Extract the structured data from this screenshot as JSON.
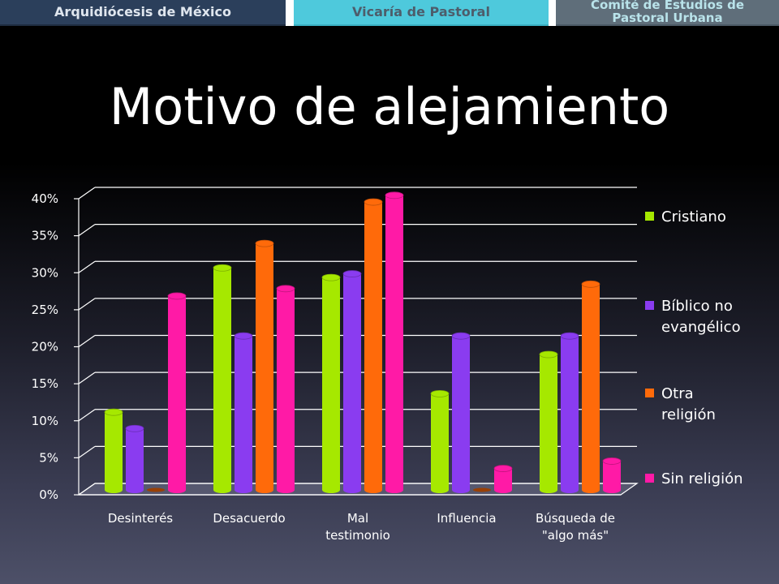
{
  "header": {
    "banner_1": "Arquidiócesis de México",
    "banner_2": "Vicaría de Pastoral",
    "banner_3_line1": "Comité de Estudios de",
    "banner_3_line2": "Pastoral Urbana"
  },
  "chart_data": {
    "type": "bar",
    "title": "Motivo de alejamiento",
    "categories": [
      "Desinterés",
      "Desacuerdo",
      "Mal testimonio",
      "Influencia",
      "Búsqueda de \"algo más\""
    ],
    "category_lines": [
      [
        "Desinterés"
      ],
      [
        "Desacuerdo"
      ],
      [
        "Mal",
        "testimonio"
      ],
      [
        "Influencia"
      ],
      [
        "Búsqueda de",
        "\"algo más\""
      ]
    ],
    "series": [
      {
        "name": "Cristiano",
        "values": [
          10.5,
          30,
          28.7,
          13,
          18.3
        ],
        "color": "#a6e800"
      },
      {
        "name": "Bíblico no evangélico",
        "values": [
          8.3,
          20.8,
          29.2,
          20.8,
          20.8
        ],
        "color": "#8a3cf0"
      },
      {
        "name": "Otra religión",
        "values": [
          0,
          33.3,
          38.9,
          0,
          27.8
        ],
        "color": "#ff6a0a"
      },
      {
        "name": "Sin religión",
        "values": [
          26.2,
          27.2,
          39.8,
          2.9,
          3.9
        ],
        "color": "#ff1aa6"
      }
    ],
    "legend_lines": [
      [
        "Cristiano"
      ],
      [
        "Bíblico no",
        "evangélico"
      ],
      [
        "Otra",
        "religión"
      ],
      [
        "Sin religión"
      ]
    ],
    "yticks": [
      "0%",
      "5%",
      "10%",
      "15%",
      "20%",
      "25%",
      "30%",
      "35%",
      "40%"
    ],
    "ylim": [
      0,
      40
    ],
    "xlabel": "",
    "ylabel": "",
    "grid": true,
    "legend_position": "right"
  }
}
